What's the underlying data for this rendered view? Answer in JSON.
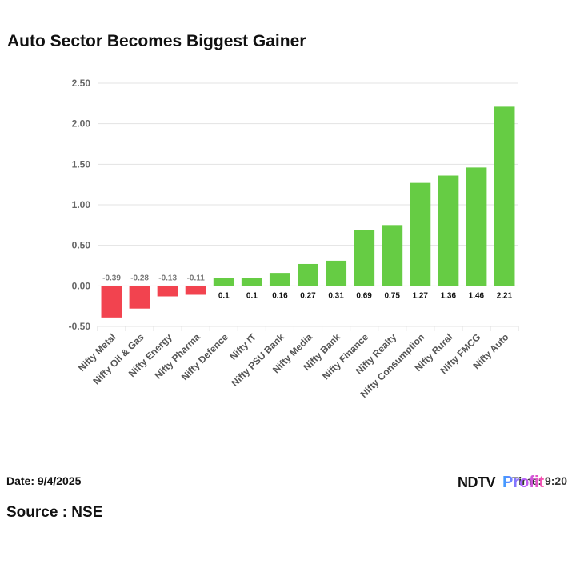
{
  "chart_data": {
    "type": "bar",
    "title": "Auto Sector Becomes Biggest Gainer",
    "xlabel": "",
    "ylabel": "",
    "ylim": [
      -0.5,
      2.5
    ],
    "yticks": [
      "2.50",
      "2.00",
      "1.50",
      "1.00",
      "0.50",
      "0.00",
      "-0.50"
    ],
    "ytick_values": [
      2.5,
      2.0,
      1.5,
      1.0,
      0.5,
      0.0,
      -0.5
    ],
    "grid": true,
    "categories": [
      "Nifty Metal",
      "Nifty Oil & Gas",
      "Nifty Energy",
      "Nifty Pharma",
      "Nifty Defence",
      "Nifty IT",
      "Nifty PSU Bank",
      "Nifty Media",
      "Nifty Bank",
      "Nifty Finance",
      "Nifty Realty",
      "Nifty Consumption",
      "Nifty Rural",
      "Nifty FMCG",
      "Nifty Auto"
    ],
    "values": [
      -0.39,
      -0.28,
      -0.13,
      -0.11,
      0.1,
      0.1,
      0.16,
      0.27,
      0.31,
      0.69,
      0.75,
      1.27,
      1.36,
      1.46,
      2.21
    ],
    "value_labels": [
      "-0.39",
      "-0.28",
      "-0.13",
      "-0.11",
      "0.1",
      "0.1",
      "0.16",
      "0.27",
      "0.31",
      "0.69",
      "0.75",
      "1.27",
      "1.36",
      "1.46",
      "2.21"
    ],
    "colors": {
      "positive": "#66CC44",
      "negative": "#F2434F",
      "grid": "#E3E3E3"
    }
  },
  "footer": {
    "date": "Date: 9/4/2025",
    "source": "Source : NSE",
    "time": "Time: 9:20",
    "brand_ndtv": "NDTV",
    "brand_profit": "Profit"
  }
}
